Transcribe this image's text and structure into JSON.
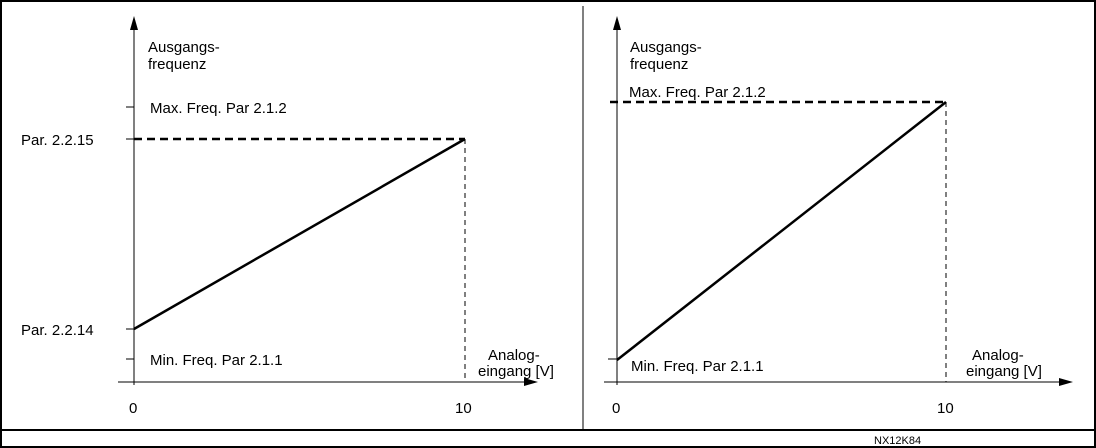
{
  "figure_code": "NX12K84",
  "left_chart": {
    "y_label_line1": "Ausgangs-",
    "y_label_line2": "frequenz",
    "x_label_line1": "Analog-",
    "x_label_line2": "eingang [V]",
    "max_freq_label": "Max. Freq. Par 2.1.2",
    "min_freq_label": "Min. Freq. Par 2.1.1",
    "par_high_label": "Par. 2.2.15",
    "par_low_label": "Par. 2.2.14",
    "x_tick_0": "0",
    "x_tick_10": "10"
  },
  "right_chart": {
    "y_label_line1": "Ausgangs-",
    "y_label_line2": "frequenz",
    "x_label_line1": "Analog-",
    "x_label_line2": "eingang [V]",
    "max_freq_label": "Max. Freq. Par 2.1.2",
    "min_freq_label": "Min. Freq. Par 2.1.1",
    "x_tick_0": "0",
    "x_tick_10": "10"
  },
  "colors": {
    "line": "#000000",
    "axis": "#000000",
    "background": "#ffffff"
  }
}
